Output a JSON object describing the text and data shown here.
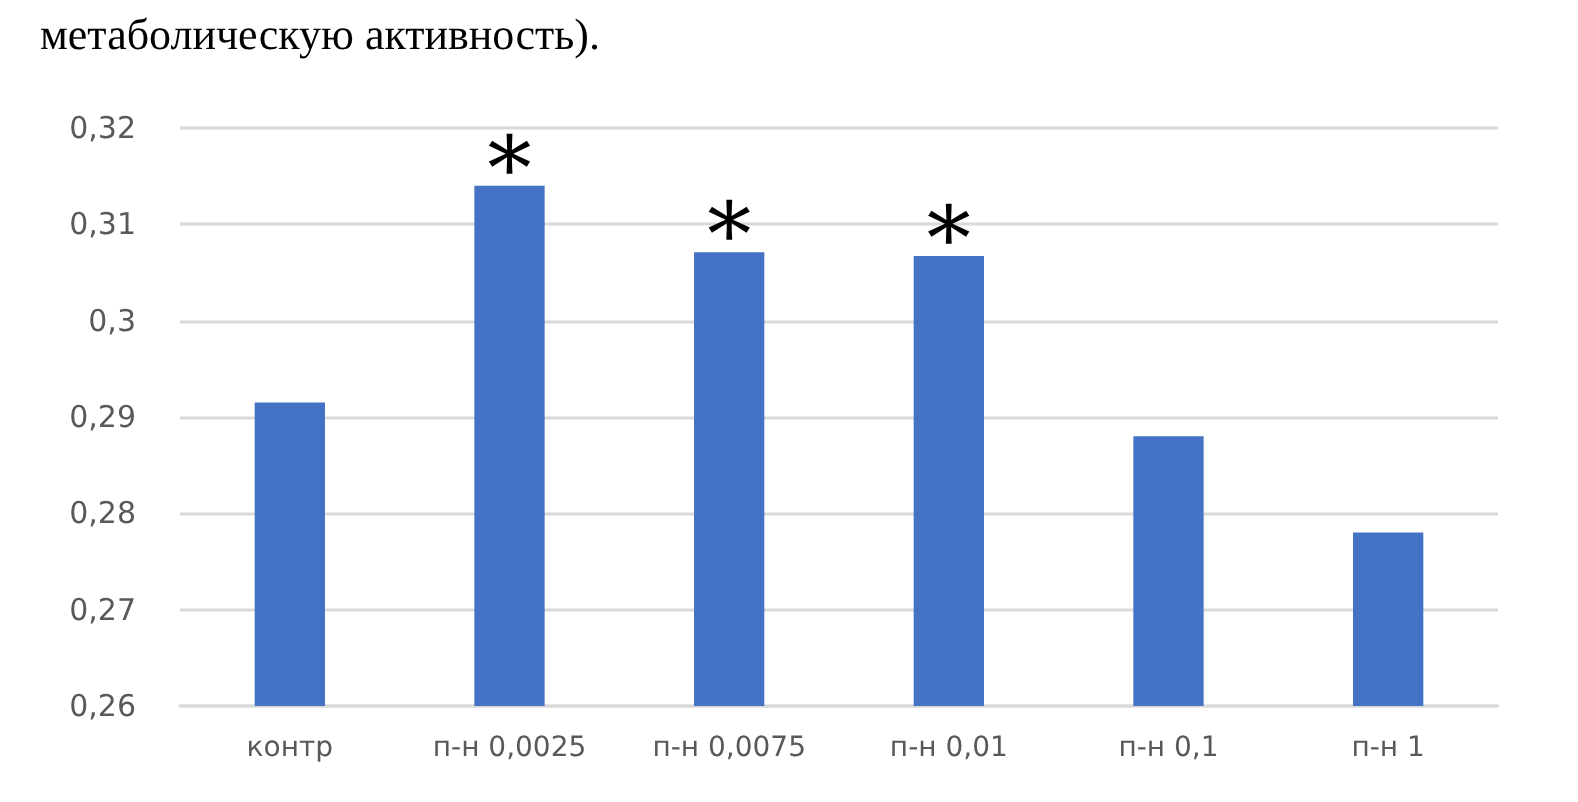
{
  "chart_data": {
    "type": "bar",
    "title": "метаболическую активность).",
    "categories": [
      "контр",
      "п-н 0,0025",
      "п-н 0,0075",
      "п-н 0,01",
      "п-н 0,1",
      "п-н 1"
    ],
    "values": [
      0.2915,
      0.314,
      0.3071,
      0.3067,
      0.288,
      0.278
    ],
    "color": "#4472c4",
    "ylim": [
      0.26,
      0.32
    ],
    "yticks": [
      {
        "value": 0.26,
        "label": "0,26"
      },
      {
        "value": 0.27,
        "label": "0,27"
      },
      {
        "value": 0.28,
        "label": "0,28"
      },
      {
        "value": 0.29,
        "label": "0,29"
      },
      {
        "value": 0.3,
        "label": "0,3"
      },
      {
        "value": 0.31,
        "label": "0,31"
      },
      {
        "value": 0.32,
        "label": "0,32"
      }
    ],
    "grid": true,
    "annotations": [
      {
        "text": "*",
        "x": "п-н 0,0025",
        "y": 0.314
      },
      {
        "text": "*",
        "x": "п-н 0,0075",
        "y": 0.3071
      },
      {
        "text": "*",
        "x": "п-н 0,01",
        "y": 0.3067
      }
    ]
  }
}
